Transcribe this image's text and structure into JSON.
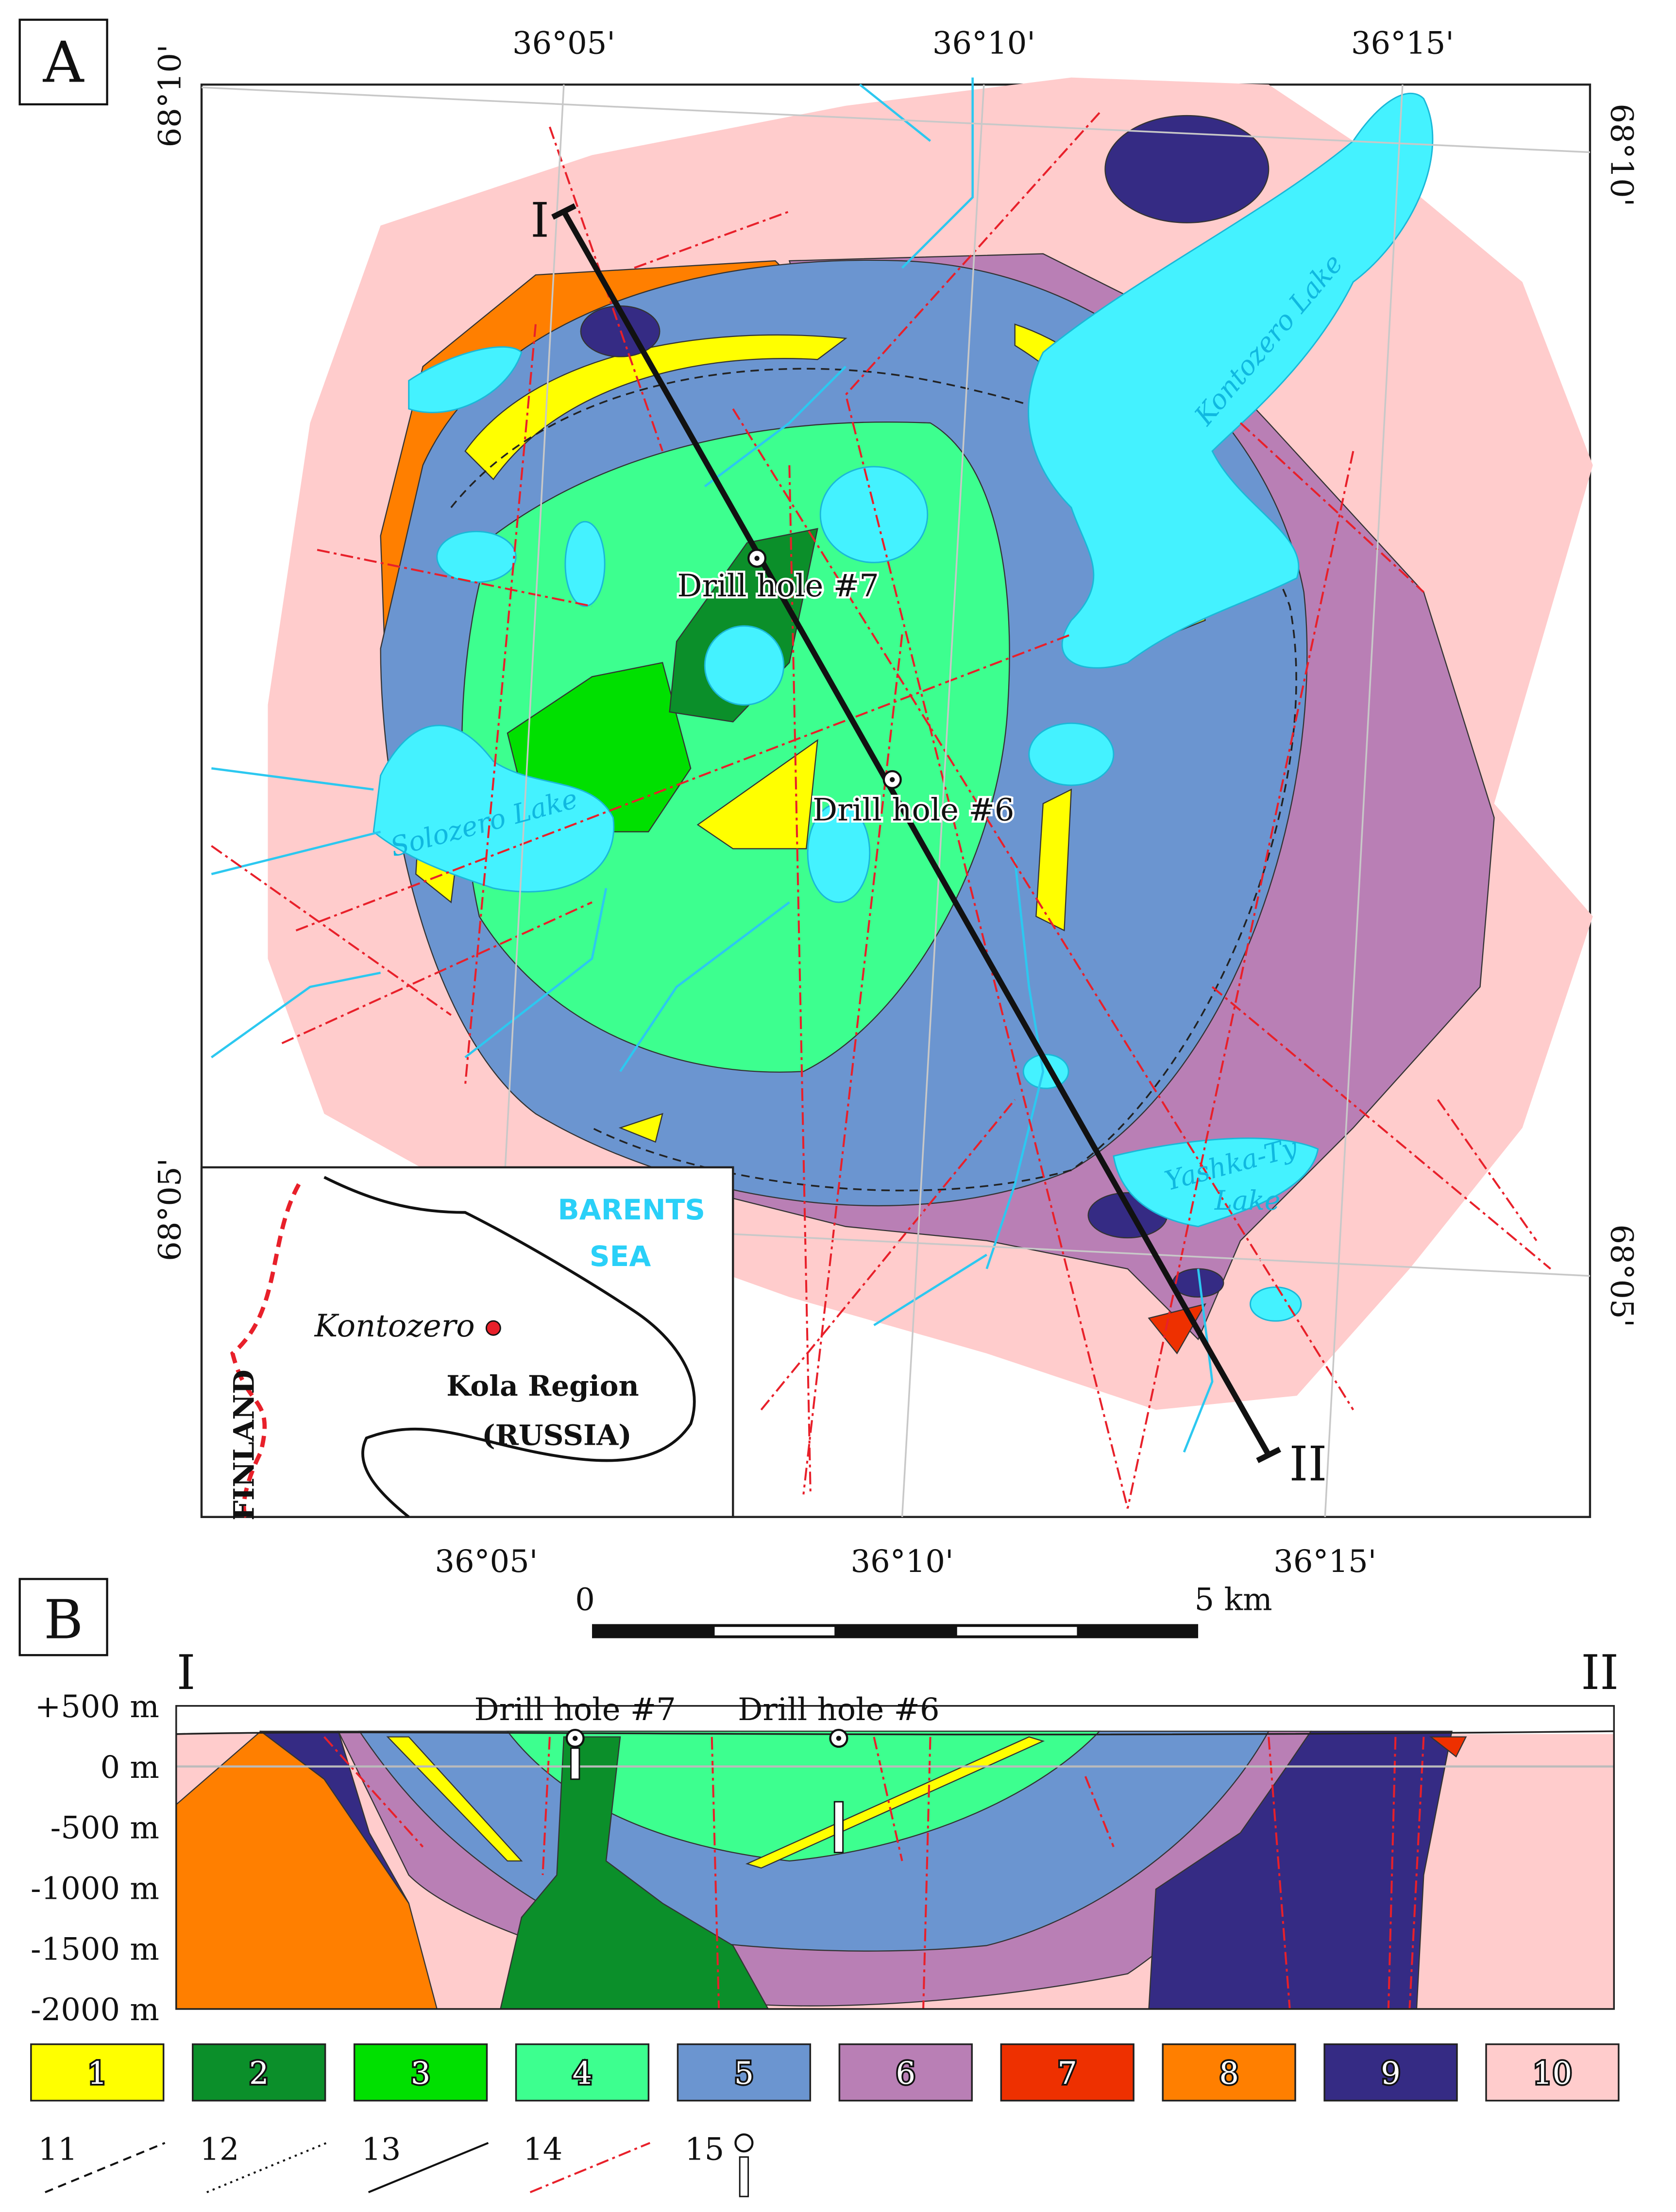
{
  "panel_a": {
    "label": "A",
    "lon_top": [
      "36°05'",
      "36°10'",
      "36°15'"
    ],
    "lon_bottom": [
      "36°05'",
      "36°10'",
      "36°15'"
    ],
    "lat_left": [
      "68°10'",
      "68°05'"
    ],
    "lat_right": [
      "68°10'",
      "68°05'"
    ],
    "section_ends": [
      "I",
      "II"
    ],
    "drill_holes": [
      "Drill hole #7",
      "Drill hole #6"
    ],
    "lakes": [
      "Kontozero Lake",
      "Solozero Lake",
      "Yashka-Ty",
      "Lake"
    ],
    "inset": {
      "sea": [
        "BARENTS",
        "SEA"
      ],
      "place": "Kontozero",
      "region": [
        "Kola Region",
        "(RUSSIA)"
      ],
      "country": "FINLAND"
    }
  },
  "scale_bar": {
    "start": "0",
    "end": "5 km"
  },
  "panel_b": {
    "label": "B",
    "ends": [
      "I",
      "II"
    ],
    "depths": [
      "+500 m",
      "0 m",
      "-500 m",
      "-1000 m",
      "-1500 m",
      "-2000 m"
    ],
    "drill_holes": [
      "Drill hole #7",
      "Drill hole #6"
    ]
  },
  "legend": {
    "units": [
      {
        "label": "1",
        "color": "#ffff00"
      },
      {
        "label": "2",
        "color": "#0b8f2a"
      },
      {
        "label": "3",
        "color": "#00e000"
      },
      {
        "label": "4",
        "color": "#3dff8f"
      },
      {
        "label": "5",
        "color": "#6b95d0"
      },
      {
        "label": "6",
        "color": "#b97fb5"
      },
      {
        "label": "7",
        "color": "#ee3000"
      },
      {
        "label": "8",
        "color": "#ff7f00"
      },
      {
        "label": "9",
        "color": "#352b84"
      },
      {
        "label": "10",
        "color": "#ffcccc"
      }
    ],
    "symbols": [
      "11",
      "12",
      "13",
      "14",
      "15"
    ]
  }
}
